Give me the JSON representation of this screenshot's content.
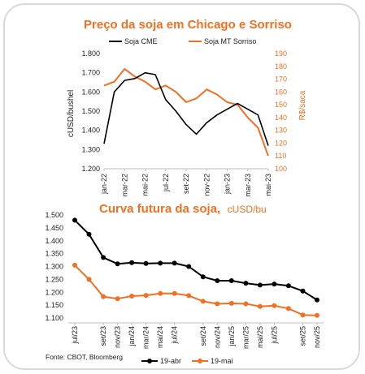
{
  "colors": {
    "black_series": "#000000",
    "orange_series": "#f36f21",
    "border": "#d9d9d9"
  },
  "source": "Fonte: CBOT, Bloomberg",
  "chart_data": [
    {
      "type": "line",
      "title": "Preço da soja em Chicago e Sorriso",
      "ylabel": "cUSD/bushel",
      "y2label": "R$/saca",
      "ylim": [
        1200,
        1800
      ],
      "y2lim": [
        100,
        190
      ],
      "yticks": [
        "1.200",
        "1.300",
        "1.400",
        "1.500",
        "1.600",
        "1.700",
        "1.800"
      ],
      "y2ticks": [
        "100",
        "110",
        "120",
        "130",
        "140",
        "150",
        "160",
        "170",
        "180",
        "190"
      ],
      "xticks": [
        "jan-22",
        "mar-22",
        "mai-22",
        "jul-22",
        "set-22",
        "nov-22",
        "jan-23",
        "mar-23",
        "mai-23"
      ],
      "x": [
        "jan-22",
        "fev-22",
        "mar-22",
        "abr-22",
        "mai-22",
        "jun-22",
        "jul-22",
        "ago-22",
        "set-22",
        "out-22",
        "nov-22",
        "dez-22",
        "jan-23",
        "fev-23",
        "mar-23",
        "abr-23",
        "mai-23"
      ],
      "series": [
        {
          "name": "Soja CME",
          "axis": "left",
          "values": [
            1330,
            1600,
            1660,
            1670,
            1700,
            1690,
            1560,
            1500,
            1430,
            1380,
            1440,
            1480,
            1510,
            1540,
            1510,
            1480,
            1320
          ]
        },
        {
          "name": "Soja MT Sorriso",
          "axis": "right",
          "values": [
            165,
            168,
            178,
            172,
            168,
            162,
            165,
            160,
            152,
            155,
            162,
            158,
            152,
            150,
            140,
            132,
            110
          ]
        }
      ]
    },
    {
      "type": "line",
      "title": "Curva futura da soja,",
      "unit": "cUSD/bu",
      "ylim": [
        1100,
        1500
      ],
      "yticks": [
        "1.100",
        "1.150",
        "1.200",
        "1.250",
        "1.300",
        "1.350",
        "1.400",
        "1.450",
        "1.500"
      ],
      "x": [
        "jul/23",
        "ago/23",
        "set/23",
        "nov/23",
        "jan/24",
        "mar/24",
        "mai/24",
        "jul/24",
        "ago/24",
        "set/24",
        "nov/24",
        "jan/25",
        "mar/25",
        "mai/25",
        "jul/25",
        "ago/25",
        "set/25",
        "nov/25"
      ],
      "xticks": [
        "jul/23",
        "set/23",
        "nov/23",
        "jan/24",
        "mar/24",
        "mai/24",
        "jul/24",
        "set/24",
        "nov/24",
        "jan/25",
        "mar/25",
        "mai/25",
        "jul/25",
        "set/25",
        "nov/25"
      ],
      "series": [
        {
          "name": "19-abr",
          "values": [
            1480,
            1425,
            1335,
            1310,
            1315,
            1312,
            1313,
            1313,
            1300,
            1260,
            1245,
            1245,
            1235,
            1228,
            1232,
            1225,
            1205,
            1170
          ]
        },
        {
          "name": "19-mai",
          "values": [
            1305,
            1250,
            1183,
            1175,
            1185,
            1188,
            1195,
            1195,
            1187,
            1165,
            1155,
            1157,
            1155,
            1145,
            1148,
            1137,
            1112,
            1110
          ]
        }
      ]
    }
  ]
}
